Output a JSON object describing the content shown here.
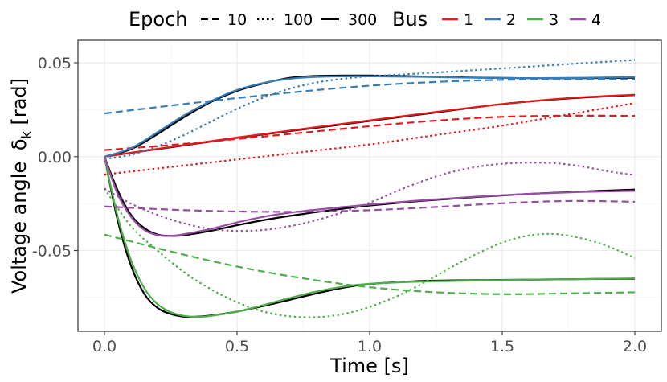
{
  "chart_data": {
    "type": "line",
    "title": "",
    "xlabel": "Time [s]",
    "ylabel": "Voltage angle",
    "ylabel_symbol": "δ",
    "ylabel_subscript": "k",
    "ylabel_unit": "[rad]",
    "xlim": [
      -0.1,
      2.1
    ],
    "ylim": [
      -0.093,
      0.062
    ],
    "xticks": [
      0.0,
      0.5,
      1.0,
      1.5,
      2.0
    ],
    "xtick_labels": [
      "0.0",
      "0.5",
      "1.0",
      "1.5",
      "2.0"
    ],
    "yticks": [
      -0.05,
      0.0,
      0.05
    ],
    "ytick_labels": [
      "-0.05",
      "0.00",
      "0.05"
    ],
    "grid": true,
    "legend": {
      "placement": "top",
      "epoch_title": "Epoch",
      "epoch_entries": [
        {
          "label": "10",
          "dash": "dashed"
        },
        {
          "label": "100",
          "dash": "dotted"
        },
        {
          "label": "300",
          "dash": "solid"
        }
      ],
      "bus_title": "Bus",
      "bus_entries": [
        {
          "label": "1",
          "color": "#e41a1c"
        },
        {
          "label": "2",
          "color": "#377eb8"
        },
        {
          "label": "3",
          "color": "#4daf4a"
        },
        {
          "label": "4",
          "color": "#984ea3"
        }
      ]
    },
    "reference_color": "#000000",
    "series": [
      {
        "name": "Reference bus 2",
        "kind": "reference",
        "x": [
          0,
          0.1,
          0.2,
          0.3,
          0.4,
          0.5,
          0.6,
          0.7,
          0.8,
          0.9,
          1.0,
          1.2,
          1.4,
          1.6,
          1.8,
          2.0
        ],
        "y": [
          0,
          0.004,
          0.012,
          0.021,
          0.029,
          0.035,
          0.039,
          0.042,
          0.043,
          0.0432,
          0.0432,
          0.0427,
          0.0421,
          0.0418,
          0.0418,
          0.042
        ]
      },
      {
        "name": "Reference bus 1",
        "kind": "reference",
        "x": [
          0,
          0.25,
          0.5,
          0.75,
          1.0,
          1.25,
          1.5,
          1.75,
          2.0
        ],
        "y": [
          0,
          0.005,
          0.01,
          0.0145,
          0.019,
          0.0235,
          0.028,
          0.031,
          0.0328
        ]
      },
      {
        "name": "Reference bus 4",
        "kind": "reference",
        "x": [
          0,
          0.05,
          0.1,
          0.15,
          0.2,
          0.25,
          0.3,
          0.4,
          0.5,
          0.6,
          0.7,
          0.8,
          0.9,
          1.0,
          1.2,
          1.4,
          1.6,
          1.8,
          2.0
        ],
        "y": [
          0,
          -0.018,
          -0.031,
          -0.038,
          -0.0415,
          -0.0422,
          -0.0418,
          -0.0395,
          -0.0365,
          -0.0338,
          -0.0315,
          -0.0295,
          -0.0277,
          -0.026,
          -0.0235,
          -0.0215,
          -0.0198,
          -0.0186,
          -0.0175
        ]
      },
      {
        "name": "Reference bus 3",
        "kind": "reference",
        "x": [
          0,
          0.05,
          0.1,
          0.15,
          0.2,
          0.25,
          0.3,
          0.35,
          0.4,
          0.5,
          0.6,
          0.7,
          0.8,
          0.9,
          1.0,
          1.2,
          1.4,
          1.6,
          1.8,
          2.0
        ],
        "y": [
          0,
          -0.034,
          -0.058,
          -0.073,
          -0.0805,
          -0.0838,
          -0.0852,
          -0.0852,
          -0.0846,
          -0.0825,
          -0.0795,
          -0.0762,
          -0.0728,
          -0.0698,
          -0.0678,
          -0.0662,
          -0.0658,
          -0.0655,
          -0.0652,
          -0.065
        ]
      },
      {
        "name": "Bus 1, epoch 10",
        "bus": 1,
        "epoch": 10,
        "x": [
          0,
          0.25,
          0.5,
          0.75,
          1.0,
          1.25,
          1.5,
          1.75,
          2.0
        ],
        "y": [
          0.0035,
          0.0062,
          0.0094,
          0.0128,
          0.0162,
          0.0192,
          0.0212,
          0.0218,
          0.0217
        ]
      },
      {
        "name": "Bus 1, epoch 100",
        "bus": 1,
        "epoch": 100,
        "x": [
          0,
          0.25,
          0.5,
          0.75,
          1.0,
          1.25,
          1.5,
          1.75,
          2.0
        ],
        "y": [
          -0.0095,
          -0.0055,
          -0.0015,
          0.0025,
          0.0065,
          0.0115,
          0.0165,
          0.0225,
          0.0285
        ]
      },
      {
        "name": "Bus 1, epoch 300",
        "bus": 1,
        "epoch": 300,
        "x": [
          0,
          0.25,
          0.5,
          0.75,
          1.0,
          1.25,
          1.5,
          1.75,
          2.0
        ],
        "y": [
          0,
          0.0052,
          0.0102,
          0.0148,
          0.0193,
          0.0238,
          0.028,
          0.0312,
          0.033
        ]
      },
      {
        "name": "Bus 2, epoch 10",
        "bus": 2,
        "epoch": 10,
        "x": [
          0,
          0.25,
          0.5,
          0.75,
          1.0,
          1.25,
          1.5,
          1.75,
          2.0
        ],
        "y": [
          0.023,
          0.0272,
          0.0312,
          0.0348,
          0.0378,
          0.0398,
          0.0409,
          0.0412,
          0.0412
        ]
      },
      {
        "name": "Bus 2, epoch 100",
        "bus": 2,
        "epoch": 100,
        "x": [
          0,
          0.1,
          0.2,
          0.3,
          0.4,
          0.5,
          0.6,
          0.7,
          0.8,
          0.9,
          1.0,
          1.25,
          1.5,
          1.75,
          2.0
        ],
        "y": [
          -0.0012,
          0.001,
          0.0055,
          0.0115,
          0.0185,
          0.0255,
          0.0315,
          0.0362,
          0.0395,
          0.0415,
          0.0428,
          0.0448,
          0.047,
          0.0493,
          0.0515
        ]
      },
      {
        "name": "Bus 2, epoch 300",
        "bus": 2,
        "epoch": 300,
        "x": [
          0,
          0.1,
          0.2,
          0.3,
          0.4,
          0.5,
          0.6,
          0.7,
          0.8,
          0.9,
          1.0,
          1.2,
          1.4,
          1.6,
          1.8,
          2.0
        ],
        "y": [
          0,
          0.0045,
          0.013,
          0.022,
          0.0295,
          0.0355,
          0.0393,
          0.0415,
          0.0425,
          0.0428,
          0.0428,
          0.0425,
          0.042,
          0.0418,
          0.042,
          0.0424
        ]
      },
      {
        "name": "Bus 3, epoch 10",
        "bus": 3,
        "epoch": 10,
        "x": [
          0,
          0.25,
          0.5,
          0.75,
          1.0,
          1.25,
          1.5,
          1.75,
          2.0
        ],
        "y": [
          -0.0415,
          -0.0505,
          -0.0585,
          -0.0648,
          -0.0695,
          -0.0722,
          -0.0732,
          -0.0728,
          -0.0722
        ]
      },
      {
        "name": "Bus 3, epoch 100",
        "bus": 3,
        "epoch": 100,
        "x": [
          0,
          0.1,
          0.2,
          0.3,
          0.4,
          0.5,
          0.6,
          0.7,
          0.8,
          0.9,
          1.0,
          1.1,
          1.2,
          1.3,
          1.4,
          1.5,
          1.6,
          1.7,
          1.8,
          1.9,
          2.0
        ],
        "y": [
          -0.017,
          -0.037,
          -0.05,
          -0.0615,
          -0.0705,
          -0.0775,
          -0.0825,
          -0.085,
          -0.0855,
          -0.0838,
          -0.08,
          -0.0745,
          -0.0675,
          -0.0595,
          -0.052,
          -0.0458,
          -0.042,
          -0.0412,
          -0.0435,
          -0.0478,
          -0.054
        ]
      },
      {
        "name": "Bus 3, epoch 300",
        "bus": 3,
        "epoch": 300,
        "x": [
          0,
          0.05,
          0.1,
          0.15,
          0.2,
          0.25,
          0.3,
          0.35,
          0.4,
          0.5,
          0.6,
          0.7,
          0.8,
          0.9,
          1.0,
          1.2,
          1.4,
          1.6,
          1.8,
          2.0
        ],
        "y": [
          0,
          -0.032,
          -0.055,
          -0.07,
          -0.0785,
          -0.0828,
          -0.0848,
          -0.0853,
          -0.0848,
          -0.0825,
          -0.079,
          -0.0752,
          -0.0718,
          -0.0692,
          -0.0677,
          -0.0665,
          -0.066,
          -0.0655,
          -0.0652,
          -0.0648
        ]
      },
      {
        "name": "Bus 4, epoch 10",
        "bus": 4,
        "epoch": 10,
        "x": [
          0,
          0.25,
          0.5,
          0.75,
          1.0,
          1.25,
          1.5,
          1.75,
          2.0
        ],
        "y": [
          -0.0265,
          -0.0282,
          -0.0292,
          -0.0293,
          -0.0285,
          -0.0268,
          -0.0248,
          -0.0236,
          -0.024
        ]
      },
      {
        "name": "Bus 4, epoch 100",
        "bus": 4,
        "epoch": 100,
        "x": [
          0,
          0.1,
          0.2,
          0.3,
          0.4,
          0.5,
          0.6,
          0.7,
          0.8,
          0.9,
          1.0,
          1.1,
          1.2,
          1.3,
          1.4,
          1.5,
          1.6,
          1.7,
          1.8,
          1.9,
          2.0
        ],
        "y": [
          -0.017,
          -0.025,
          -0.031,
          -0.0355,
          -0.0385,
          -0.0395,
          -0.039,
          -0.037,
          -0.0338,
          -0.0295,
          -0.0245,
          -0.0185,
          -0.013,
          -0.0085,
          -0.0055,
          -0.0038,
          -0.0032,
          -0.0035,
          -0.0052,
          -0.0078,
          -0.0098
        ]
      },
      {
        "name": "Bus 4, epoch 300",
        "bus": 4,
        "epoch": 300,
        "x": [
          0,
          0.05,
          0.1,
          0.15,
          0.2,
          0.25,
          0.3,
          0.4,
          0.5,
          0.6,
          0.7,
          0.8,
          0.9,
          1.0,
          1.2,
          1.4,
          1.6,
          1.8,
          2.0
        ],
        "y": [
          0,
          -0.02,
          -0.032,
          -0.039,
          -0.0418,
          -0.0422,
          -0.0413,
          -0.0385,
          -0.035,
          -0.032,
          -0.0298,
          -0.0282,
          -0.0268,
          -0.0255,
          -0.0232,
          -0.0213,
          -0.0198,
          -0.0188,
          -0.0182
        ]
      }
    ]
  }
}
